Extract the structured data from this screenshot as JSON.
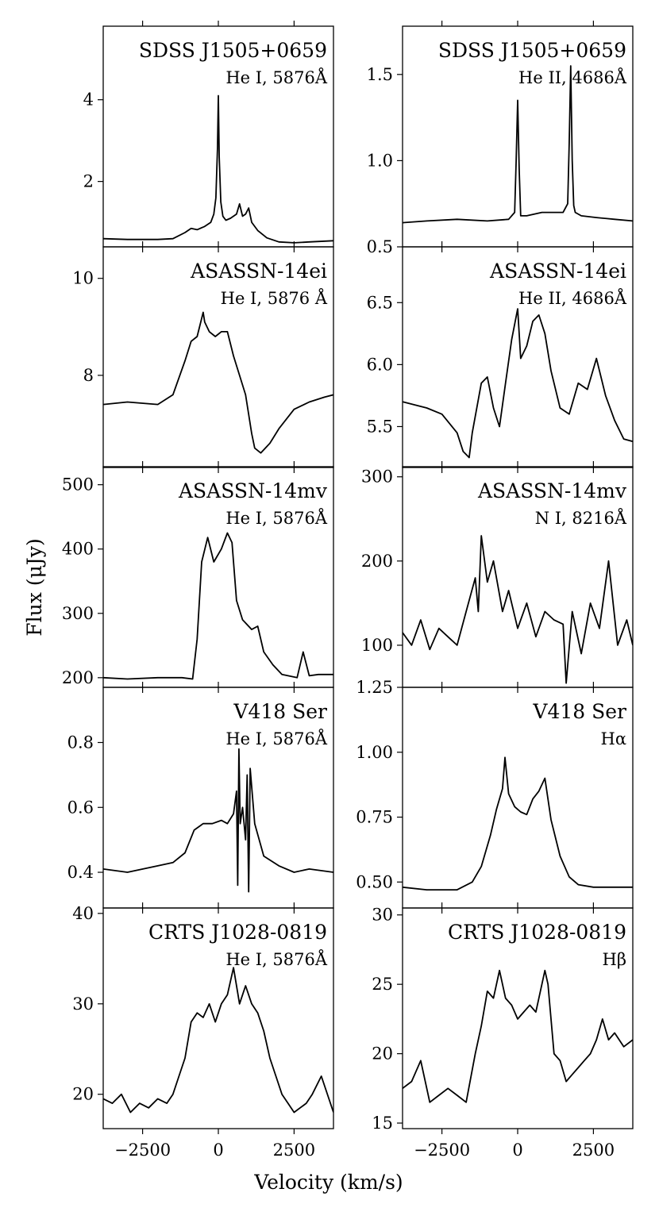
{
  "figure": {
    "ylabel": "Flux (μJy)",
    "xlabel": "Velocity (km/s)",
    "x_ticks": [
      "−2500",
      "0",
      "2500"
    ],
    "line_color": "#000000"
  },
  "chart_data": [
    {
      "type": "line",
      "row": 0,
      "col": 0,
      "object": "SDSS J1505+0659",
      "line": "He I, 5876Å",
      "xlim": [
        -3800,
        3800
      ],
      "ylim": [
        0.4,
        5.8
      ],
      "yticks": [
        2,
        4
      ],
      "ytick_labels": [
        "2",
        "4"
      ],
      "x": [
        -3800,
        -3000,
        -2000,
        -1500,
        -1100,
        -900,
        -700,
        -450,
        -250,
        -150,
        -80,
        -30,
        0,
        30,
        80,
        150,
        250,
        400,
        600,
        700,
        800,
        900,
        1000,
        1100,
        1300,
        1600,
        2000,
        2500,
        3000,
        3800
      ],
      "y": [
        0.6,
        0.58,
        0.58,
        0.6,
        0.75,
        0.85,
        0.82,
        0.9,
        1.0,
        1.2,
        1.6,
        2.8,
        4.1,
        2.6,
        1.5,
        1.15,
        1.05,
        1.1,
        1.2,
        1.45,
        1.15,
        1.2,
        1.35,
        1.0,
        0.8,
        0.62,
        0.52,
        0.5,
        0.52,
        0.55
      ]
    },
    {
      "type": "line",
      "row": 0,
      "col": 1,
      "object": "SDSS J1505+0659",
      "line": "He II, 4686Å",
      "xlim": [
        -3800,
        3800
      ],
      "ylim": [
        0.5,
        1.78
      ],
      "yticks": [
        0.5,
        1.0,
        1.5
      ],
      "ytick_labels": [
        "0.5",
        "1.0",
        "1.5"
      ],
      "x": [
        -3800,
        -3000,
        -2000,
        -1000,
        -300,
        -100,
        -50,
        0,
        50,
        100,
        300,
        800,
        1200,
        1500,
        1650,
        1700,
        1750,
        1800,
        1850,
        1900,
        2100,
        2600,
        3200,
        3800
      ],
      "y": [
        0.64,
        0.65,
        0.66,
        0.65,
        0.66,
        0.7,
        1.0,
        1.35,
        0.95,
        0.68,
        0.68,
        0.7,
        0.7,
        0.7,
        0.75,
        1.1,
        1.55,
        1.0,
        0.74,
        0.7,
        0.68,
        0.67,
        0.66,
        0.65
      ]
    },
    {
      "type": "line",
      "row": 1,
      "col": 0,
      "object": "ASASSN-14ei",
      "line": "He I, 5876 Å",
      "xlim": [
        -3800,
        3800
      ],
      "ylim": [
        6.1,
        10.65
      ],
      "yticks": [
        8,
        10
      ],
      "ytick_labels": [
        "8",
        "10"
      ],
      "x": [
        -3800,
        -3000,
        -2000,
        -1500,
        -1100,
        -900,
        -700,
        -500,
        -450,
        -300,
        -100,
        100,
        300,
        500,
        700,
        900,
        1100,
        1200,
        1400,
        1700,
        2000,
        2500,
        3000,
        3500,
        3800
      ],
      "y": [
        7.4,
        7.45,
        7.4,
        7.6,
        8.3,
        8.7,
        8.8,
        9.3,
        9.1,
        8.9,
        8.8,
        8.9,
        8.9,
        8.4,
        8.0,
        7.6,
        6.8,
        6.5,
        6.4,
        6.6,
        6.9,
        7.3,
        7.45,
        7.55,
        7.6
      ]
    },
    {
      "type": "line",
      "row": 1,
      "col": 1,
      "object": "ASASSN-14ei",
      "line": "He II, 4686Å",
      "xlim": [
        -3800,
        3800
      ],
      "ylim": [
        5.17,
        6.95
      ],
      "yticks": [
        5.5,
        6.0,
        6.5
      ],
      "ytick_labels": [
        "5.5",
        "6.0",
        "6.5"
      ],
      "x": [
        -3800,
        -3000,
        -2500,
        -2000,
        -1800,
        -1600,
        -1500,
        -1200,
        -1000,
        -800,
        -600,
        -400,
        -200,
        0,
        100,
        300,
        500,
        700,
        900,
        1100,
        1400,
        1700,
        2000,
        2300,
        2600,
        2900,
        3200,
        3500,
        3800
      ],
      "y": [
        5.7,
        5.65,
        5.6,
        5.45,
        5.3,
        5.25,
        5.45,
        5.85,
        5.9,
        5.65,
        5.5,
        5.85,
        6.2,
        6.45,
        6.05,
        6.15,
        6.35,
        6.4,
        6.25,
        5.95,
        5.65,
        5.6,
        5.85,
        5.8,
        6.05,
        5.75,
        5.55,
        5.4,
        5.38
      ]
    },
    {
      "type": "line",
      "row": 2,
      "col": 0,
      "object": "ASASSN-14mv",
      "line": "He I, 5876Å",
      "xlim": [
        -3800,
        3800
      ],
      "ylim": [
        185,
        528
      ],
      "yticks": [
        200,
        300,
        400,
        500
      ],
      "ytick_labels": [
        "200",
        "300",
        "400",
        "500"
      ],
      "x": [
        -3800,
        -3000,
        -2000,
        -1200,
        -850,
        -700,
        -550,
        -350,
        -150,
        100,
        300,
        450,
        600,
        800,
        1100,
        1300,
        1500,
        1800,
        2100,
        2600,
        2800,
        3000,
        3300,
        3800
      ],
      "y": [
        200,
        198,
        200,
        200,
        198,
        260,
        380,
        418,
        380,
        400,
        425,
        410,
        320,
        290,
        275,
        280,
        240,
        220,
        205,
        200,
        240,
        203,
        205,
        205
      ]
    },
    {
      "type": "line",
      "row": 2,
      "col": 1,
      "object": "ASASSN-14mv",
      "line": "N I, 8216Å",
      "xlim": [
        -3800,
        3800
      ],
      "ylim": [
        50,
        312
      ],
      "yticks": [
        100,
        200,
        300
      ],
      "ytick_labels": [
        "100",
        "200",
        "300"
      ],
      "x": [
        -3800,
        -3500,
        -3200,
        -2900,
        -2600,
        -2300,
        -2000,
        -1700,
        -1400,
        -1300,
        -1200,
        -1000,
        -800,
        -500,
        -300,
        0,
        300,
        600,
        900,
        1200,
        1500,
        1600,
        1800,
        2100,
        2400,
        2700,
        3000,
        3300,
        3600,
        3800
      ],
      "y": [
        115,
        100,
        130,
        95,
        120,
        110,
        100,
        140,
        180,
        140,
        230,
        175,
        200,
        140,
        165,
        120,
        150,
        110,
        140,
        130,
        125,
        55,
        140,
        90,
        150,
        120,
        200,
        100,
        130,
        100
      ]
    },
    {
      "type": "line",
      "row": 3,
      "col": 0,
      "object": "V418 Ser",
      "line": "He I, 5876Å",
      "xlim": [
        -3800,
        3800
      ],
      "ylim": [
        0.29,
        0.97
      ],
      "yticks": [
        0.4,
        0.6,
        0.8
      ],
      "ytick_labels": [
        "0.4",
        "0.6",
        "0.8"
      ],
      "x": [
        -3800,
        -3000,
        -2000,
        -1500,
        -1100,
        -800,
        -500,
        -200,
        100,
        300,
        500,
        600,
        640,
        680,
        720,
        800,
        900,
        950,
        1000,
        1050,
        1200,
        1500,
        2000,
        2500,
        3000,
        3800
      ],
      "y": [
        0.41,
        0.4,
        0.42,
        0.43,
        0.46,
        0.53,
        0.55,
        0.55,
        0.56,
        0.55,
        0.58,
        0.65,
        0.36,
        0.78,
        0.55,
        0.6,
        0.5,
        0.7,
        0.34,
        0.72,
        0.55,
        0.45,
        0.42,
        0.4,
        0.41,
        0.4
      ]
    },
    {
      "type": "line",
      "row": 3,
      "col": 1,
      "object": "V418 Ser",
      "line": "Hα",
      "xlim": [
        -3800,
        3800
      ],
      "ylim": [
        0.4,
        1.25
      ],
      "yticks": [
        0.5,
        0.75,
        1.0,
        1.25
      ],
      "ytick_labels": [
        "0.50",
        "0.75",
        "1.00",
        "1.25"
      ],
      "x": [
        -3800,
        -3000,
        -2000,
        -1500,
        -1200,
        -900,
        -700,
        -500,
        -420,
        -300,
        -100,
        100,
        300,
        500,
        700,
        900,
        1100,
        1400,
        1700,
        2000,
        2500,
        3000,
        3800
      ],
      "y": [
        0.48,
        0.47,
        0.47,
        0.5,
        0.56,
        0.68,
        0.78,
        0.86,
        0.98,
        0.84,
        0.79,
        0.77,
        0.76,
        0.82,
        0.85,
        0.9,
        0.74,
        0.6,
        0.52,
        0.49,
        0.48,
        0.48,
        0.48
      ]
    },
    {
      "type": "line",
      "row": 4,
      "col": 0,
      "object": "CRTS J1028-0819",
      "line": "He I, 5876Å",
      "xlim": [
        -3800,
        3800
      ],
      "ylim": [
        16.2,
        40.6
      ],
      "yticks": [
        20,
        30,
        40
      ],
      "ytick_labels": [
        "20",
        "30",
        "40"
      ],
      "x": [
        -3800,
        -3500,
        -3200,
        -2900,
        -2600,
        -2300,
        -2000,
        -1700,
        -1500,
        -1300,
        -1100,
        -900,
        -700,
        -500,
        -300,
        -100,
        100,
        300,
        500,
        700,
        900,
        1100,
        1300,
        1500,
        1700,
        1900,
        2100,
        2300,
        2500,
        2700,
        2900,
        3100,
        3400,
        3800
      ],
      "y": [
        19.5,
        19,
        20,
        18,
        19,
        18.5,
        19.5,
        19,
        20,
        22,
        24,
        28,
        29,
        28.5,
        30,
        28,
        30,
        31,
        34,
        30,
        32,
        30,
        29,
        27,
        24,
        22,
        20,
        19,
        18,
        18.5,
        19,
        20,
        22,
        18
      ]
    },
    {
      "type": "line",
      "row": 4,
      "col": 1,
      "object": "CRTS J1028-0819",
      "line": "Hβ",
      "xlim": [
        -3800,
        3800
      ],
      "ylim": [
        14.6,
        30.5
      ],
      "yticks": [
        15,
        20,
        25,
        30
      ],
      "ytick_labels": [
        "15",
        "20",
        "25",
        "30"
      ],
      "x": [
        -3800,
        -3500,
        -3200,
        -2900,
        -2600,
        -2300,
        -2000,
        -1700,
        -1400,
        -1200,
        -1000,
        -800,
        -600,
        -400,
        -200,
        0,
        200,
        400,
        600,
        800,
        900,
        1000,
        1200,
        1400,
        1600,
        1800,
        2000,
        2200,
        2400,
        2600,
        2800,
        3000,
        3200,
        3500,
        3800
      ],
      "y": [
        17.5,
        18,
        19.5,
        16.5,
        17,
        17.5,
        17,
        16.5,
        20,
        22,
        24.5,
        24,
        26,
        24,
        23.5,
        22.5,
        23,
        23.5,
        23,
        25,
        26,
        25,
        20,
        19.5,
        18,
        18.5,
        19,
        19.5,
        20,
        21,
        22.5,
        21,
        21.5,
        20.5,
        21
      ]
    }
  ]
}
